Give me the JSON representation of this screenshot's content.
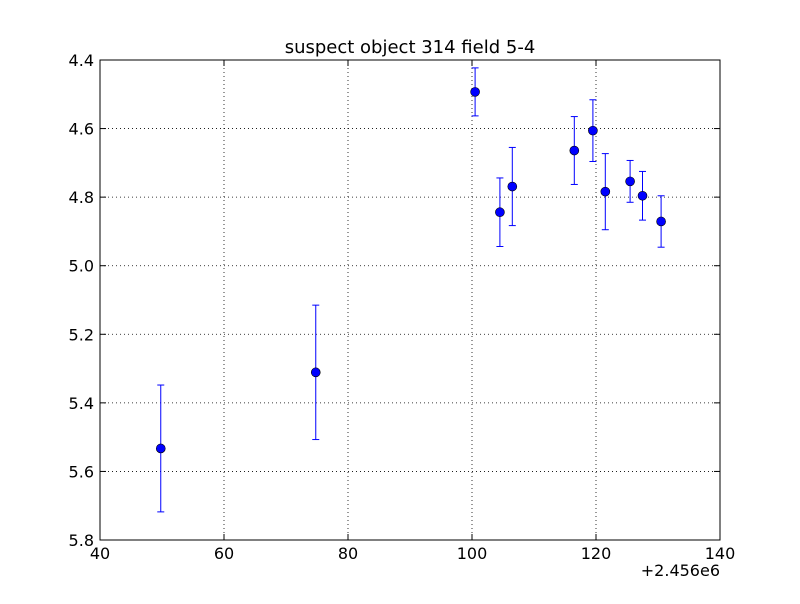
{
  "chart_data": {
    "type": "scatter",
    "title": "suspect object 314 field 5-4",
    "xlabel": "",
    "ylabel": "",
    "x_offset_label": "+2.456e6",
    "xlim": [
      40,
      140
    ],
    "ylim": [
      4.4,
      5.8
    ],
    "y_inverted": true,
    "grid": true,
    "x_ticks": [
      "40",
      "60",
      "80",
      "100",
      "120",
      "140"
    ],
    "y_ticks": [
      "4.4",
      "4.6",
      "4.8",
      "5.0",
      "5.2",
      "5.4",
      "5.6",
      "5.8"
    ],
    "points": [
      {
        "x": 49.8,
        "y": 5.533,
        "err": 0.185
      },
      {
        "x": 74.8,
        "y": 5.311,
        "err": 0.196
      },
      {
        "x": 100.5,
        "y": 4.493,
        "err": 0.07
      },
      {
        "x": 104.5,
        "y": 4.844,
        "err": 0.1
      },
      {
        "x": 106.5,
        "y": 4.769,
        "err": 0.114
      },
      {
        "x": 116.5,
        "y": 4.664,
        "err": 0.099
      },
      {
        "x": 119.5,
        "y": 4.606,
        "err": 0.09
      },
      {
        "x": 121.5,
        "y": 4.784,
        "err": 0.111
      },
      {
        "x": 125.5,
        "y": 4.754,
        "err": 0.061
      },
      {
        "x": 127.5,
        "y": 4.796,
        "err": 0.071
      },
      {
        "x": 130.5,
        "y": 4.871,
        "err": 0.075
      }
    ],
    "marker_color": "#0000ff"
  }
}
